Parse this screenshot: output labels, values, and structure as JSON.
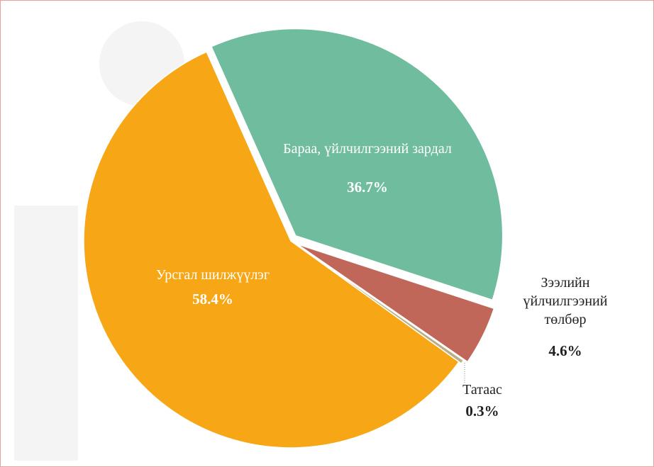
{
  "chart_data": {
    "type": "pie",
    "categories": [
      "Бараа, үйлчилгээний зардал",
      "Зээлийн үйлчилгээний төлбөр",
      "Татаас",
      "Урсгал шилжүүлэг"
    ],
    "values": [
      36.7,
      4.6,
      0.3,
      58.4
    ],
    "value_labels": [
      "36.7%",
      "4.6%",
      "0.3%",
      "58.4%"
    ],
    "colors": [
      "#70bc9f",
      "#c0675a",
      "#b9b08a",
      "#f7a616"
    ]
  }
}
